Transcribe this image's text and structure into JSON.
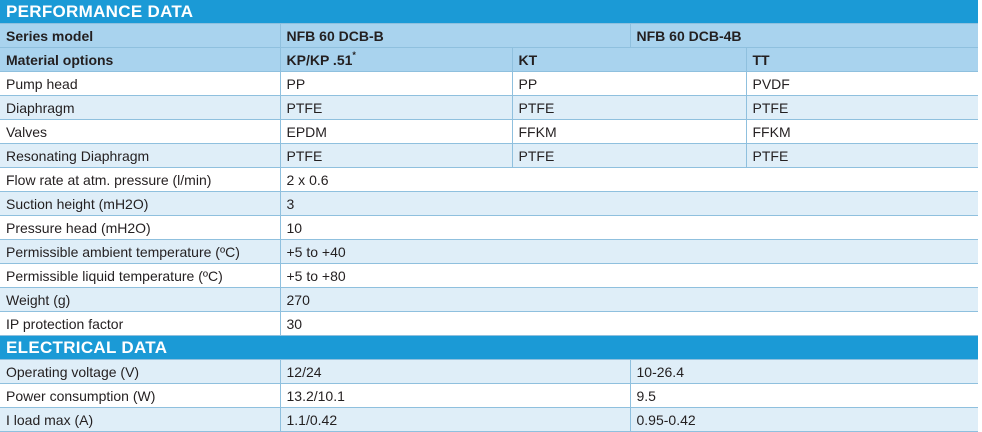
{
  "performance": {
    "title": "PERFORMANCE DATA",
    "series_row": {
      "label": "Series model",
      "model_b": "NFB 60 DCB-B",
      "model_4b": "NFB 60 DCB-4B"
    },
    "material_row": {
      "label": "Material options",
      "opt1": "KP/KP .51",
      "opt1_mark": "*",
      "opt2": "KT",
      "opt3": "TT"
    },
    "material_rows": [
      {
        "label": "Pump head",
        "v1": "PP",
        "v2": "PP",
        "v3": "PVDF"
      },
      {
        "label": "Diaphragm",
        "v1": "PTFE",
        "v2": "PTFE",
        "v3": "PTFE"
      },
      {
        "label": "Valves",
        "v1": "EPDM",
        "v2": "FFKM",
        "v3": "FFKM"
      },
      {
        "label": "Resonating Diaphragm",
        "v1": "PTFE",
        "v2": "PTFE",
        "v3": "PTFE"
      }
    ],
    "spec_rows": [
      {
        "label": "Flow rate at atm. pressure (l/min)",
        "value": "2 x 0.6"
      },
      {
        "label": "Suction height (mH2O)",
        "value": "3"
      },
      {
        "label": "Pressure head (mH2O)",
        "value": "10"
      },
      {
        "label": "Permissible ambient temperature (ºC)",
        "value": "+5 to +40"
      },
      {
        "label": "Permissible liquid temperature (ºC)",
        "value": "+5 to +80"
      },
      {
        "label": "Weight (g)",
        "value": "270"
      },
      {
        "label": "IP protection factor",
        "value": "30"
      }
    ]
  },
  "electrical": {
    "title": "ELECTRICAL DATA",
    "rows": [
      {
        "label": "Operating voltage (V)",
        "v1": "12/24",
        "v2": "10-26.4"
      },
      {
        "label": "Power consumption (W)",
        "v1": "13.2/10.1",
        "v2": "9.5"
      },
      {
        "label": "I load max (A)",
        "v1": "1.1/0.42",
        "v2": "0.95-0.42"
      }
    ]
  }
}
